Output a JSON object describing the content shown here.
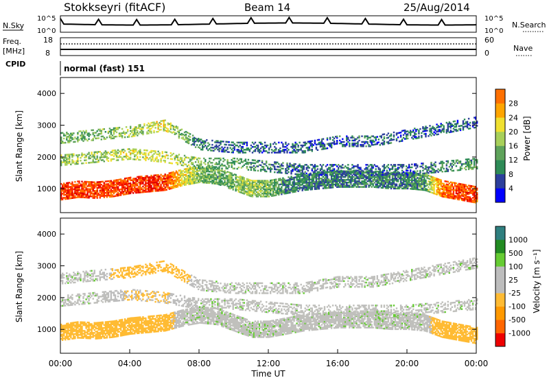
{
  "header": {
    "station": "Stokkseyri (fitACF)",
    "beam": "Beam 14",
    "date": "25/Aug/2014"
  },
  "top_panels": {
    "nsky_label": "N.Sky",
    "nsky_ticks": [
      "10^5",
      "10^0"
    ],
    "nsearch_label": "N.Search",
    "nsearch_ticks": [
      "10^5",
      "10^0"
    ],
    "freq_label": "Freq.",
    "freq_unit": "[MHz]",
    "freq_ticks": [
      "18",
      "8"
    ],
    "nave_label": "Nave",
    "nave_ticks": [
      "60",
      "0"
    ],
    "cpid_label": "CPID",
    "cpid_value": "normal (fast) 151"
  },
  "colors": {
    "power_scale": [
      "#0000ff",
      "#2c3f9c",
      "#2e8b57",
      "#5fa35b",
      "#a8d05a",
      "#f0e030",
      "#ffa500",
      "#ff7000",
      "#ff2a00",
      "#e00000"
    ],
    "velocity_scale": [
      "#ee0000",
      "#ff6600",
      "#ff9900",
      "#ffbb33",
      "#bdbdbd",
      "#bdbdbd",
      "#66cc33",
      "#228b22",
      "#2f7f7f",
      "#1f3fa0"
    ],
    "ground_scatter": "#c0c0bc"
  },
  "chart_data": [
    {
      "type": "heatmap",
      "name": "power-panel",
      "ylabel": "Slant Range [km]",
      "xlabel": "",
      "ylim": [
        250,
        4500
      ],
      "yticks": [
        1000,
        2000,
        3000,
        4000
      ],
      "xlim": [
        0,
        24
      ],
      "colorbar": {
        "label": "Power [dB]",
        "range": [
          0,
          32
        ],
        "ticks": [
          4,
          8,
          12,
          16,
          20,
          24,
          28
        ]
      },
      "bands": [
        {
          "t": [
            0,
            1,
            2,
            3,
            4,
            5,
            6,
            7,
            8,
            9,
            10,
            11,
            12,
            13,
            14,
            15,
            16,
            17,
            18,
            19,
            20,
            21,
            22,
            23,
            24
          ],
          "range": [
            900,
            980,
            950,
            1000,
            1100,
            1150,
            1200,
            1350,
            1450,
            1400,
            1200,
            1000,
            1000,
            1100,
            1200,
            1250,
            1300,
            1300,
            1300,
            1250,
            1250,
            1200,
            1000,
            900,
            800
          ],
          "level": [
            27,
            27,
            26,
            26,
            27,
            28,
            27,
            18,
            12,
            10,
            12,
            14,
            12,
            8,
            8,
            8,
            8,
            8,
            8,
            8,
            8,
            10,
            24,
            26,
            26
          ]
        },
        {
          "t": [
            0,
            2,
            4,
            6,
            8,
            10,
            12,
            14,
            16,
            18,
            20,
            22,
            24
          ],
          "range": [
            1900,
            2000,
            2100,
            2000,
            1800,
            1800,
            1700,
            1600,
            1600,
            1600,
            1600,
            1700,
            1800
          ],
          "level": [
            14,
            14,
            16,
            16,
            12,
            10,
            8,
            6,
            6,
            6,
            6,
            8,
            10
          ]
        },
        {
          "t": [
            0,
            2,
            4,
            6,
            8,
            10,
            12,
            14,
            16,
            18,
            20,
            22,
            24
          ],
          "range": [
            2600,
            2700,
            2800,
            3000,
            2400,
            2300,
            2300,
            2300,
            2500,
            2500,
            2700,
            2900,
            3100
          ],
          "level": [
            12,
            12,
            14,
            16,
            8,
            6,
            6,
            6,
            6,
            6,
            6,
            6,
            6
          ]
        }
      ]
    },
    {
      "type": "heatmap",
      "name": "velocity-panel",
      "ylabel": "Slant Range [km]",
      "xlabel": "Time UT",
      "ylim": [
        250,
        4500
      ],
      "yticks": [
        1000,
        2000,
        3000,
        4000
      ],
      "xlim": [
        0,
        24
      ],
      "xticks": [
        "00:00",
        "04:00",
        "08:00",
        "12:00",
        "16:00",
        "20:00",
        "00:00"
      ],
      "colorbar": {
        "label": "Velocity [m s⁻¹]",
        "ticks": [
          "1000",
          "500",
          "100",
          "25",
          "-25",
          "-100",
          "-500",
          "-1000"
        ]
      },
      "bands": [
        {
          "t": [
            0,
            1,
            2,
            3,
            4,
            5,
            6,
            7,
            8,
            9,
            10,
            11,
            12,
            13,
            14,
            15,
            16,
            17,
            18,
            19,
            20,
            21,
            22,
            23,
            24
          ],
          "range": [
            900,
            980,
            950,
            1000,
            1100,
            1150,
            1200,
            1350,
            1450,
            1400,
            1200,
            1000,
            1000,
            1100,
            1200,
            1250,
            1300,
            1300,
            1300,
            1250,
            1250,
            1200,
            1000,
            900,
            800
          ],
          "velocity": [
            -300,
            -300,
            -200,
            -200,
            -300,
            -300,
            -200,
            0,
            0,
            0,
            0,
            0,
            0,
            0,
            0,
            0,
            0,
            0,
            0,
            0,
            0,
            0,
            -300,
            -300,
            -300
          ]
        },
        {
          "t": [
            0,
            2,
            4,
            6,
            8,
            10,
            12,
            14,
            16,
            18,
            20,
            22,
            24
          ],
          "range": [
            1900,
            2000,
            2100,
            2000,
            1800,
            1800,
            1700,
            1600,
            1600,
            1600,
            1600,
            1700,
            1800
          ],
          "velocity": [
            0,
            0,
            -100,
            -100,
            0,
            0,
            0,
            0,
            0,
            0,
            0,
            0,
            0
          ]
        },
        {
          "t": [
            0,
            2,
            4,
            6,
            8,
            10,
            12,
            14,
            16,
            18,
            20,
            22,
            24
          ],
          "range": [
            2600,
            2700,
            2800,
            3000,
            2400,
            2300,
            2300,
            2300,
            2500,
            2500,
            2700,
            2900,
            3100
          ],
          "velocity": [
            0,
            0,
            -200,
            -300,
            0,
            0,
            0,
            0,
            0,
            0,
            0,
            0,
            0
          ]
        }
      ]
    }
  ]
}
